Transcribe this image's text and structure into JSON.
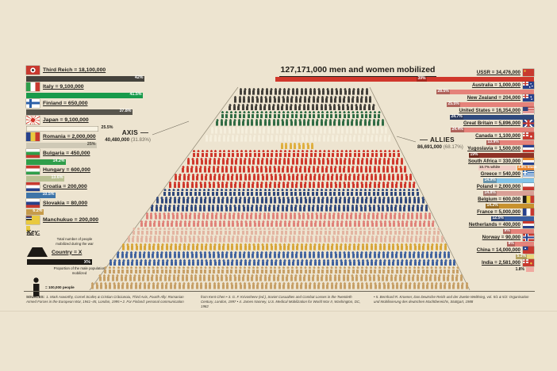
{
  "title": "127,171,000 men and women mobilized",
  "axis_label": {
    "name": "AXIS",
    "total": "40,480,000",
    "share": "(31.83%)"
  },
  "allies_label": {
    "name": "ALLIES",
    "total": "86,691,000",
    "share": "(68.17%)"
  },
  "axis_countries": [
    {
      "id": "third-reich",
      "label": "Third Reich = 18,100,000",
      "pct": 42,
      "pct_label": "42%",
      "flag": "reich",
      "color": "#45423c",
      "text": "#ffffff",
      "pct_pos": "in"
    },
    {
      "id": "italy",
      "label": "Italy = 9,100,000",
      "pct": 41.5,
      "pct_label": "41.5%",
      "flag": "italy",
      "color": "#189a4b",
      "text": "#ffffff",
      "pct_pos": "in"
    },
    {
      "id": "finland",
      "label": "Finland = 650,000",
      "pct": 37.8,
      "pct_label": "37.8%",
      "flag": "finland",
      "color": "#57544c",
      "text": "#ffffff",
      "pct_pos": "in"
    },
    {
      "id": "japan",
      "label": "Japan = 9,100,000",
      "pct": 25.5,
      "pct_label": "25.5%",
      "flag": "japan",
      "color": "#f8f3e3",
      "text": "#23201b",
      "pct_pos": "right"
    },
    {
      "id": "romania",
      "label": "Romania = 2,000,000",
      "pct": 25,
      "pct_label": "25%",
      "flag": "romania",
      "color": "#cfc9b6",
      "text": "#4a463c",
      "pct_pos": "in"
    },
    {
      "id": "bulgaria",
      "label": "Bulgaria = 450,000",
      "pct": 14.2,
      "pct_label": "14.2%",
      "flag": "bulgaria",
      "color": "#2f9e4a",
      "text": "#ffffff",
      "pct_pos": "in"
    },
    {
      "id": "hungary",
      "label": "Hungary = 600,000",
      "pct": 13.6,
      "pct_label": "13.6%",
      "flag": "hungary",
      "color": "#b9c193",
      "text": "#ffffff",
      "pct_pos": "in"
    },
    {
      "id": "croatia",
      "label": "Croatia = 200,000",
      "pct": 10.5,
      "pct_label": "10.5%",
      "flag": "croatia",
      "color": "#3e74a8",
      "text": "#ffffff",
      "pct_pos": "in"
    },
    {
      "id": "slovakia",
      "label": "Slovakia = 80,000",
      "pct": 6.2,
      "pct_label": "6.2%",
      "flag": "slovakia",
      "color": "#c69b4a",
      "text": "#ffffff",
      "pct_pos": "in"
    },
    {
      "id": "manchukuo",
      "label": "Manchukuo = 200,000",
      "pct": 1,
      "pct_label": "1%",
      "flag": "manchukuo",
      "color": "#e8c93e",
      "text": "#23201b",
      "pct_pos": "below"
    }
  ],
  "ally_countries": [
    {
      "id": "ussr",
      "label": "USSR = 34,476,000",
      "pct": 39,
      "pct_label": "39%",
      "flag": "ussr",
      "color": "#d0372b"
    },
    {
      "id": "australia",
      "label": "Australia = 1,000,000",
      "pct": 28.5,
      "pct_label": "28.5%",
      "flag": "australia",
      "color": "#e5827a"
    },
    {
      "id": "new-zealand",
      "label": "New Zealand = 204,000",
      "pct": 25.5,
      "pct_label": "25.5%",
      "flag": "newzealand",
      "color": "#e5827a"
    },
    {
      "id": "united-states",
      "label": "United States = 16,354,000",
      "pct": 24.7,
      "pct_label": "24.7%",
      "flag": "us",
      "color": "#2e4a7e"
    },
    {
      "id": "great-britain",
      "label": "Great Britain = 5,896,000",
      "pct": 24.4,
      "pct_label": "24.4%",
      "flag": "uk",
      "color": "#e5827a"
    },
    {
      "id": "canada",
      "label": "Canada = 1,100,000",
      "pct": 13.9,
      "pct_label": "13.9%",
      "flag": "canada",
      "color": "#e5827a"
    },
    {
      "id": "yugoslavia",
      "label": "Yugoslavia = 1,500,000",
      "pct": 19,
      "pct_label": "19%",
      "flag": "yugoslavia",
      "color": "#8e3226"
    },
    {
      "id": "south-africa",
      "label": "South Africa = 330,000",
      "flag": "southafrica",
      "segments": [
        {
          "pct": 10.7,
          "label": "10.7% white",
          "color": "#f2cdc5",
          "text": "#3a352c"
        },
        {
          "pct": 4.8,
          "label": "4.8% black",
          "color": "#e8842e",
          "text": "#ffffff"
        }
      ]
    },
    {
      "id": "greece",
      "label": "Greece = 540,000",
      "pct": 14.9,
      "pct_label": "14.9%",
      "flag": "greece",
      "color": "#82c4e8"
    },
    {
      "id": "poland",
      "label": "Poland = 2,000,000",
      "pct": 14.8,
      "pct_label": "14.8%",
      "flag": "poland",
      "color": "#d9a096"
    },
    {
      "id": "belgium",
      "label": "Belgium = 600,000",
      "pct": 14.2,
      "pct_label": "14.2%",
      "flag": "belgium",
      "color": "#c8922e"
    },
    {
      "id": "france",
      "label": "France = 5,000,000",
      "pct": 12.5,
      "pct_label": "12.5%",
      "flag": "france",
      "color": "#3a5ea0"
    },
    {
      "id": "netherlands",
      "label": "Netherlands = 400,000",
      "pct": 9,
      "pct_label": "9%",
      "flag": "netherlands",
      "color": "#e5827a"
    },
    {
      "id": "norway",
      "label": "Norway = 90,000",
      "pct": 8,
      "pct_label": "8%",
      "flag": "norway",
      "color": "#e5827a"
    },
    {
      "id": "china",
      "label": "China = 14,000,000",
      "pct": 5.3,
      "pct_label": "5.3%",
      "flag": "china",
      "color": "#ead87f"
    },
    {
      "id": "india",
      "label": "India = 2,581,000",
      "pct": 1.8,
      "pct_label": "1.8%",
      "flag": "india",
      "color": "#f0a9a0",
      "pct_pos": "out-left"
    }
  ],
  "key": {
    "heading": "Key:",
    "total_note": "Total number of people mobilized during the war",
    "country_label": "Country = X",
    "bar_pct": "X%",
    "proportion_note": "Proportion of the male population mobilized",
    "person_note": "= 100,000 people"
  },
  "sources": {
    "label": "SOURCES:",
    "col1": "1. Mark Axworthy, Cornel Scafeș & Cristian Crăciunoiu, Third Axis, Fourth Ally: Romanian Armed Forces in the European War, 1941–45, London, 1995 • 2. For Finland: personal communication",
    "col2": "from Kent Chen • 3. G. F. Krivosheev (ed.), Soviet Casualties and Combat Losses in the Twentieth Century, London, 1997 • 4. James Nanney, U.S. Medical Mobilization for World War II, Washington, DC, 1982",
    "col3": "• 5. Bernhard R. Kroener, Das Deutsche Reich und der Zweite Weltkrieg, vol. 5/1 & 5/2: Organisation und Mobilisierung des deutschen Machtbereichs, Stuttgart, 1988"
  },
  "pyramid": {
    "bands": [
      {
        "name": "third-reich",
        "color": "#423f39",
        "rows": 3
      },
      {
        "name": "italy",
        "color": "#2f6b44",
        "rows": 2
      },
      {
        "name": "japan",
        "color": "#f5efdd",
        "rows": 2
      },
      {
        "name": "minor-axis-states",
        "color": "#dfae3c",
        "rows": 1,
        "width_factor": 0.18
      },
      {
        "name": "ussr",
        "color": "#cf382c",
        "rows": 5
      },
      {
        "name": "united-states",
        "color": "#31497c",
        "rows": 3
      },
      {
        "name": "great-britain-commonwealth",
        "color": "#e0837a",
        "rows": 2
      },
      {
        "name": "western-allies",
        "color": "#e3b5a2",
        "rows": 2
      },
      {
        "name": "belgium-mixed",
        "color": "#d8a63a",
        "rows": 1
      },
      {
        "name": "france",
        "color": "#41639f",
        "rows": 2
      },
      {
        "name": "china-india",
        "color": "#c7a067",
        "rows": 3
      }
    ]
  },
  "chart_data": {
    "type": "pictogram",
    "title": "127,171,000 men and women mobilized",
    "total_mobilized": 127171000,
    "icon_unit_people": 100000,
    "groups": [
      {
        "name": "Axis",
        "total": 40480000,
        "share_pct": 31.83,
        "countries": [
          {
            "name": "Third Reich",
            "mobilized": 18100000,
            "pct_of_male_population": 42
          },
          {
            "name": "Italy",
            "mobilized": 9100000,
            "pct_of_male_population": 41.5
          },
          {
            "name": "Finland",
            "mobilized": 650000,
            "pct_of_male_population": 37.8
          },
          {
            "name": "Japan",
            "mobilized": 9100000,
            "pct_of_male_population": 25.5
          },
          {
            "name": "Romania",
            "mobilized": 2000000,
            "pct_of_male_population": 25
          },
          {
            "name": "Bulgaria",
            "mobilized": 450000,
            "pct_of_male_population": 14.2
          },
          {
            "name": "Hungary",
            "mobilized": 600000,
            "pct_of_male_population": 13.6
          },
          {
            "name": "Croatia",
            "mobilized": 200000,
            "pct_of_male_population": 10.5
          },
          {
            "name": "Slovakia",
            "mobilized": 80000,
            "pct_of_male_population": 6.2
          },
          {
            "name": "Manchukuo",
            "mobilized": 200000,
            "pct_of_male_population": 1
          }
        ]
      },
      {
        "name": "Allies",
        "total": 86691000,
        "share_pct": 68.17,
        "countries": [
          {
            "name": "USSR",
            "mobilized": 34476000,
            "pct_of_male_population": 39
          },
          {
            "name": "Australia",
            "mobilized": 1000000,
            "pct_of_male_population": 28.5
          },
          {
            "name": "New Zealand",
            "mobilized": 204000,
            "pct_of_male_population": 25.5
          },
          {
            "name": "United States",
            "mobilized": 16354000,
            "pct_of_male_population": 24.7
          },
          {
            "name": "Great Britain",
            "mobilized": 5896000,
            "pct_of_male_population": 24.4
          },
          {
            "name": "Canada",
            "mobilized": 1100000,
            "pct_of_male_population": 13.9
          },
          {
            "name": "Yugoslavia",
            "mobilized": 1500000,
            "pct_of_male_population": 19
          },
          {
            "name": "South Africa",
            "mobilized": 330000,
            "pct_white": 10.7,
            "pct_black": 4.8
          },
          {
            "name": "Greece",
            "mobilized": 540000,
            "pct_of_male_population": 14.9
          },
          {
            "name": "Poland",
            "mobilized": 2000000,
            "pct_of_male_population": 14.8
          },
          {
            "name": "Belgium",
            "mobilized": 600000,
            "pct_of_male_population": 14.2
          },
          {
            "name": "France",
            "mobilized": 5000000,
            "pct_of_male_population": 12.5
          },
          {
            "name": "Netherlands",
            "mobilized": 400000,
            "pct_of_male_population": 9
          },
          {
            "name": "Norway",
            "mobilized": 90000,
            "pct_of_male_population": 8
          },
          {
            "name": "China",
            "mobilized": 14000000,
            "pct_of_male_population": 5.3
          },
          {
            "name": "India",
            "mobilized": 2581000,
            "pct_of_male_population": 1.8
          }
        ]
      }
    ]
  }
}
